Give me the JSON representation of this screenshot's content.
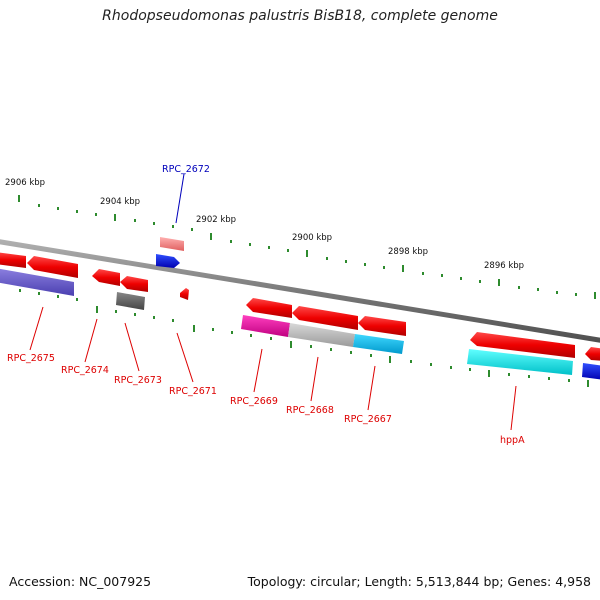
{
  "title": "Rhodopseudomonas palustris BisB18, complete genome",
  "accession": "Accession: NC_007925",
  "stats": "Topology: circular; Length: 5,513,844 bp; Genes: 4,958",
  "colors": {
    "backbone": "#808080",
    "scale_dots": "#2e8b2e",
    "label_red": "#dd0000",
    "label_blue": "#0000bb"
  },
  "scale_labels": [
    "2906 kbp",
    "2904 kbp",
    "2902 kbp",
    "2900 kbp",
    "2898 kbp",
    "2896 kbp"
  ],
  "gene_labels": [
    "RPC_2672",
    "RPC_2675",
    "RPC_2674",
    "RPC_2673",
    "RPC_2671",
    "RPC_2669",
    "RPC_2668",
    "RPC_2667",
    "hppA"
  ]
}
